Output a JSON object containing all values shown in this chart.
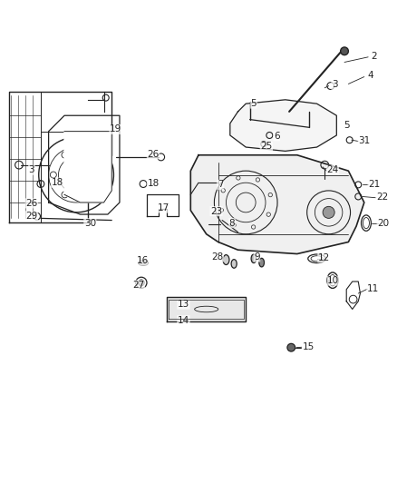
{
  "bg_color": "#ffffff",
  "fig_width": 4.38,
  "fig_height": 5.33,
  "dpi": 100,
  "line_color": "#222222",
  "label_fontsize": 7.5
}
